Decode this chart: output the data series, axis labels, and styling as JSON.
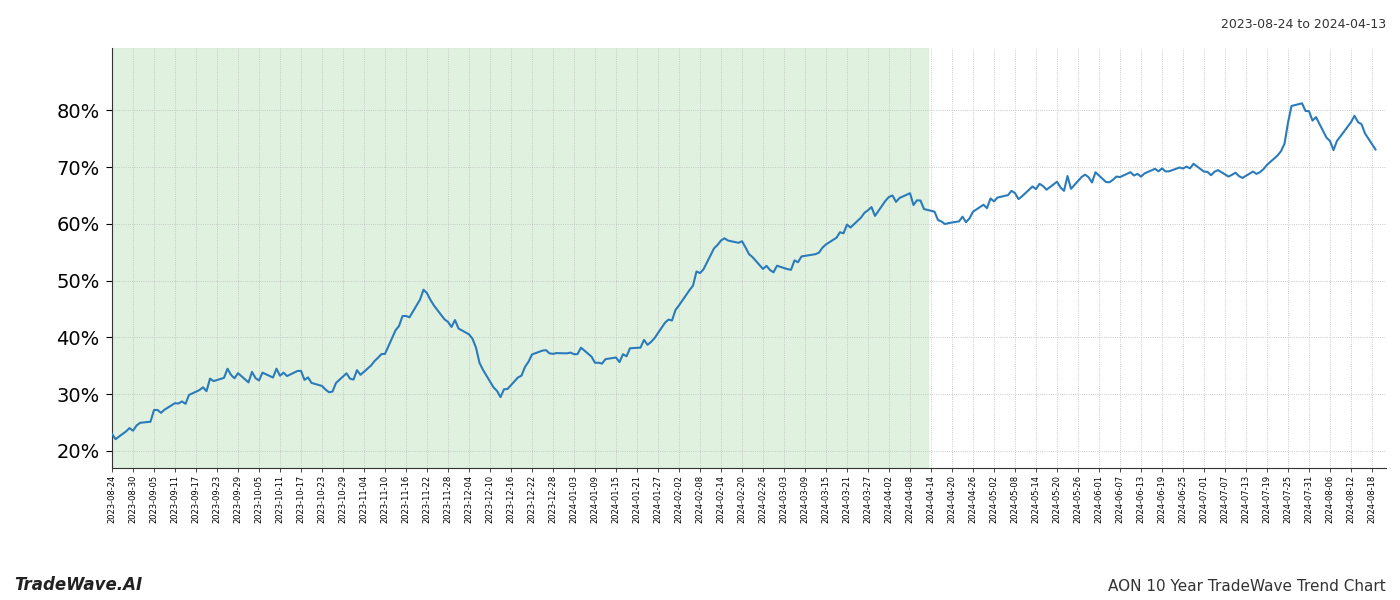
{
  "title_top_right": "2023-08-24 to 2024-04-13",
  "title_bottom_left": "TradeWave.AI",
  "title_bottom_right": "AON 10 Year TradeWave Trend Chart",
  "line_color": "#2b7bba",
  "line_width": 1.5,
  "shaded_region_color": "#d4ecd4",
  "shaded_region_alpha": 0.7,
  "shaded_start": "2023-08-24",
  "shaded_end": "2024-04-13",
  "background_color": "#ffffff",
  "grid_color": "#bbbbbb",
  "grid_linestyle": ":",
  "y_ticks": [
    20,
    30,
    40,
    50,
    60,
    70,
    80
  ],
  "y_min": 17,
  "y_max": 91,
  "x_start": "2023-08-24",
  "x_end": "2024-08-19",
  "waypoints_dates": [
    "2023-08-24",
    "2023-08-30",
    "2023-09-05",
    "2023-09-11",
    "2023-09-17",
    "2023-09-23",
    "2023-09-29",
    "2023-10-05",
    "2023-10-11",
    "2023-10-17",
    "2023-10-23",
    "2023-10-29",
    "2023-11-04",
    "2023-11-10",
    "2023-11-16",
    "2023-11-22",
    "2023-11-28",
    "2023-12-04",
    "2023-12-10",
    "2023-12-16",
    "2023-12-22",
    "2023-12-28",
    "2024-01-03",
    "2024-01-09",
    "2024-01-15",
    "2024-01-21",
    "2024-01-27",
    "2024-02-02",
    "2024-02-08",
    "2024-02-14",
    "2024-02-20",
    "2024-02-26",
    "2024-03-04",
    "2024-03-10",
    "2024-03-16",
    "2024-03-22",
    "2024-03-28",
    "2024-04-03",
    "2024-04-09",
    "2024-04-13",
    "2024-04-19",
    "2024-04-25",
    "2024-05-01",
    "2024-05-07",
    "2024-05-13",
    "2024-05-19",
    "2024-05-25",
    "2024-05-31",
    "2024-06-06",
    "2024-06-12",
    "2024-06-18",
    "2024-06-24",
    "2024-06-30",
    "2024-07-06",
    "2024-07-12",
    "2024-07-18",
    "2024-07-24",
    "2024-07-26",
    "2024-08-01",
    "2024-08-07",
    "2024-08-13",
    "2024-08-19"
  ],
  "waypoints_vals": [
    22.0,
    24.0,
    26.5,
    28.0,
    30.0,
    32.5,
    34.0,
    33.0,
    34.5,
    33.0,
    31.0,
    32.0,
    33.5,
    38.0,
    44.0,
    48.0,
    43.0,
    40.5,
    31.0,
    30.5,
    37.5,
    37.0,
    37.5,
    36.0,
    36.5,
    38.0,
    40.5,
    46.0,
    52.0,
    57.5,
    57.0,
    53.0,
    53.5,
    55.0,
    57.5,
    61.0,
    62.5,
    65.0,
    65.0,
    63.5,
    61.0,
    62.0,
    65.0,
    66.0,
    67.0,
    67.5,
    68.5,
    69.5,
    69.0,
    70.0,
    70.5,
    71.0,
    70.5,
    70.0,
    69.5,
    70.0,
    75.0,
    83.0,
    80.0,
    75.0,
    80.0,
    75.0
  ],
  "ytick_fontsize": 14,
  "xtick_fontsize": 6
}
